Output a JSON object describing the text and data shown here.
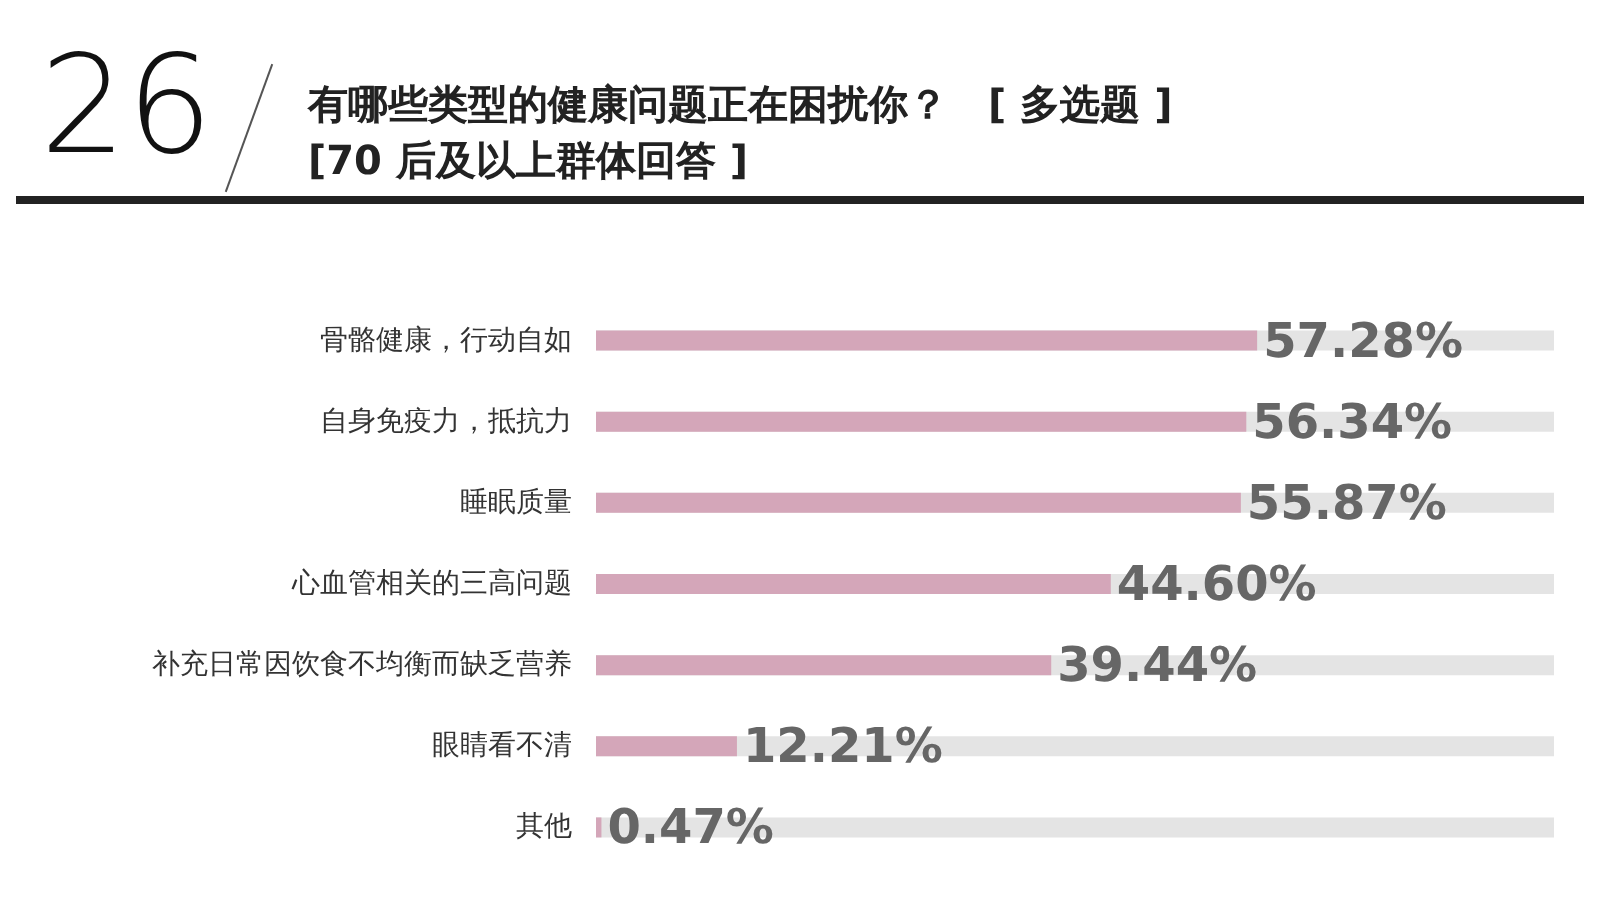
{
  "chart_data": {
    "type": "bar",
    "orientation": "horizontal",
    "title": "有哪些类型的健康问题正在困扰你？　[ 多选题 ]",
    "subtitle": "[70 后及以上群体回答 ]",
    "annotations": [
      "26"
    ],
    "categories": [
      "骨骼健康，行动自如",
      "自身免疫力，抵抗力",
      "睡眠质量",
      "心血管相关的三高问题",
      "补充日常因饮食不均衡而缺乏营养",
      "眼睛看不清",
      "其他"
    ],
    "values": [
      57.28,
      56.34,
      55.87,
      44.6,
      39.44,
      12.21,
      0.47
    ],
    "value_labels": [
      "57.28%",
      "56.34%",
      "55.87%",
      "44.60%",
      "39.44%",
      "12.21%",
      "0.47%"
    ],
    "color": "#d4a6b9",
    "xlim": [
      0,
      83
    ],
    "tick_labels": "y"
  }
}
